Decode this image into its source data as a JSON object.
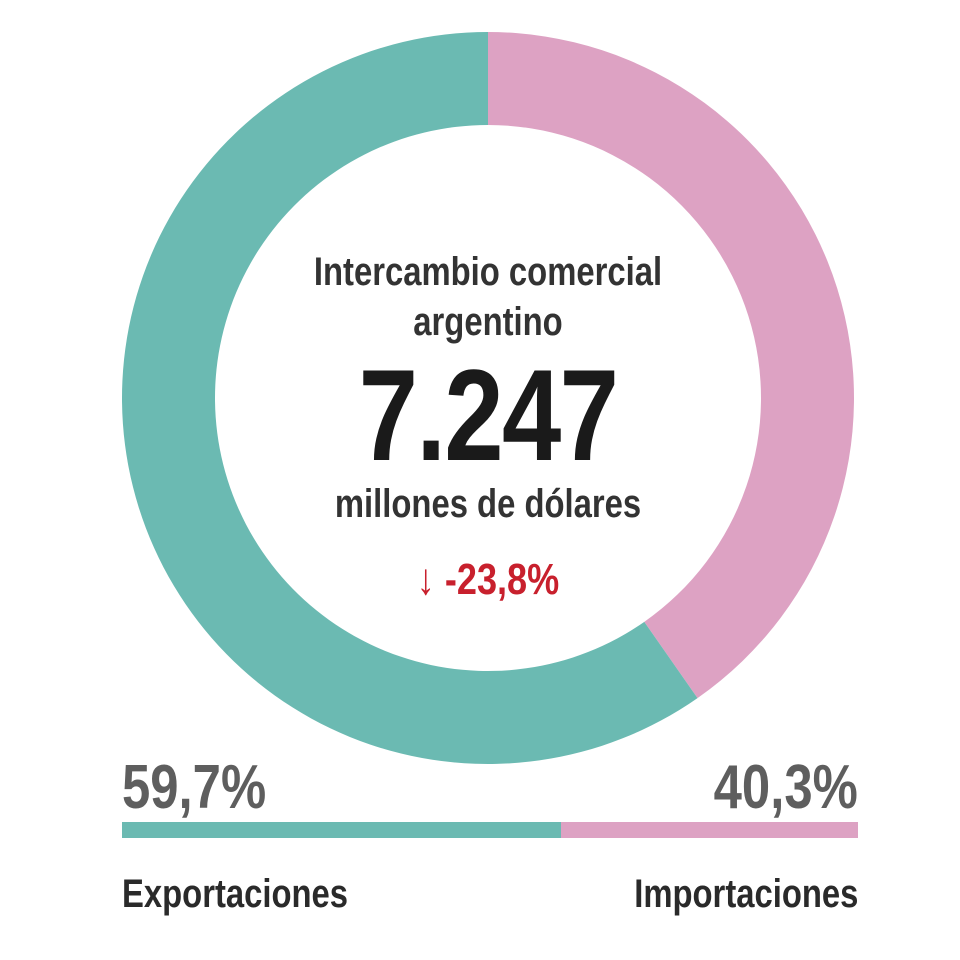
{
  "chart_data": {
    "type": "pie",
    "donut": true,
    "title": "Intercambio comercial argentino",
    "title_lines": [
      "Intercambio comercial",
      "argentino"
    ],
    "total_value": "7.247",
    "total_unit": "millones de dólares",
    "change": "-23,8%",
    "change_direction": "down",
    "slices": [
      {
        "name": "Importaciones",
        "value": 40.3,
        "label": "40,3%",
        "color": "#dda2c3"
      },
      {
        "name": "Exportaciones",
        "value": 59.7,
        "label": "59,7%",
        "color": "#6bbab2"
      }
    ]
  },
  "colors": {
    "change": "#c8202d"
  }
}
